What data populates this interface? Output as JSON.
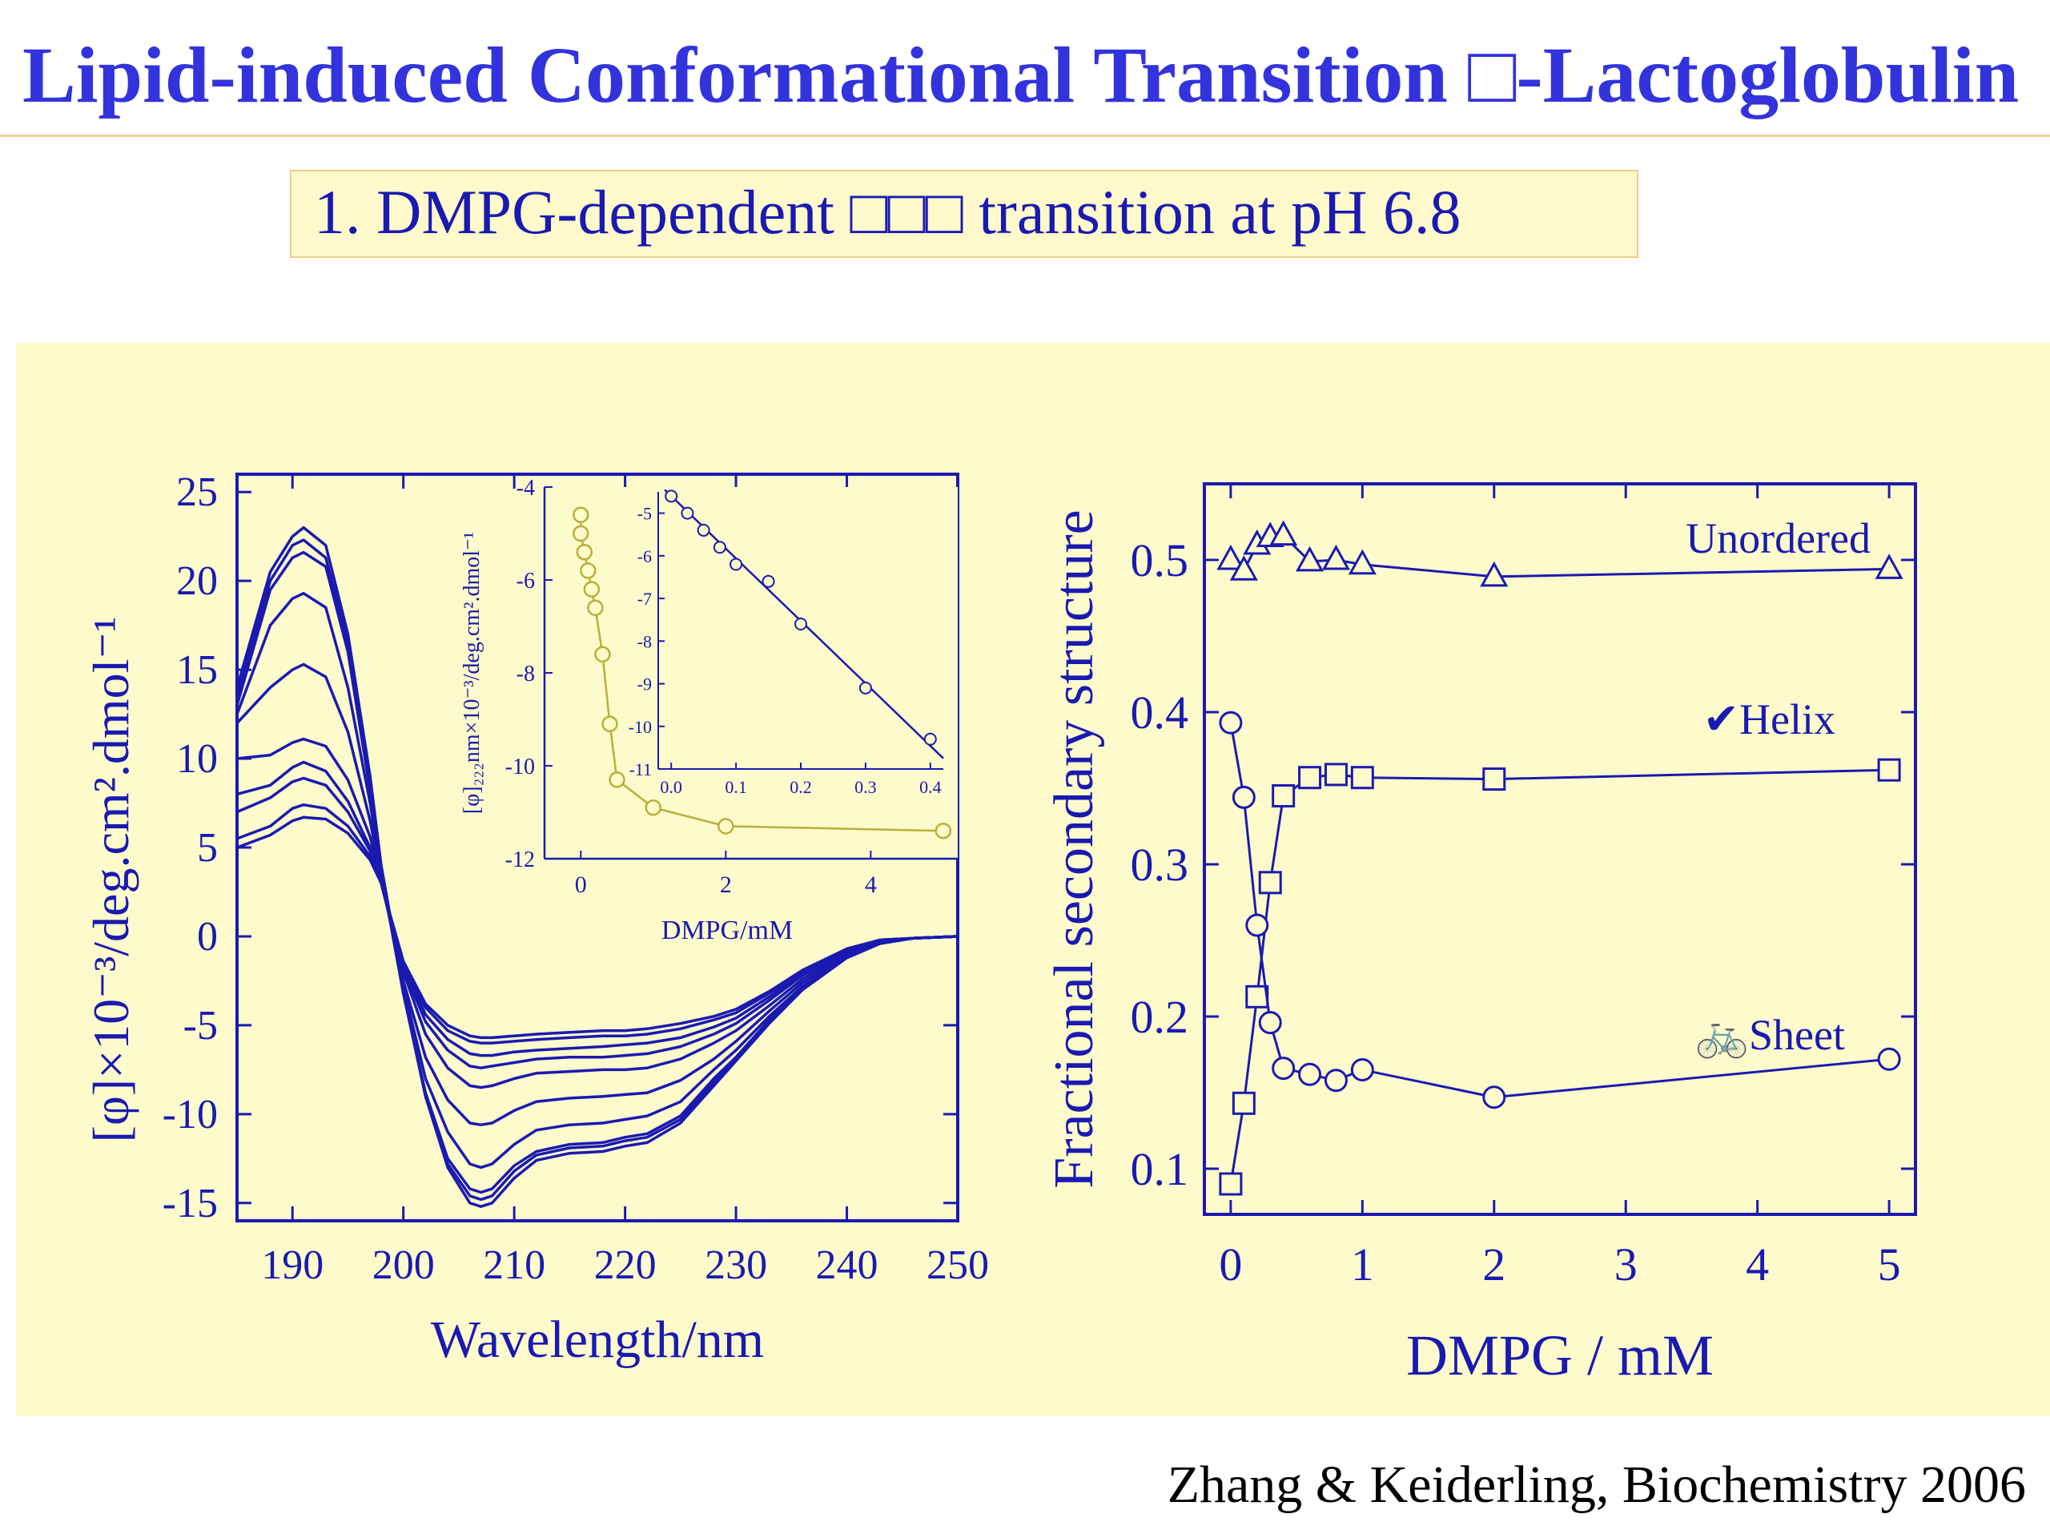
{
  "slide": {
    "title": "Lipid-induced Conformational Transition □-Lactoglobulin",
    "subtitle": "1. DMPG-dependent □□□ transition at pH 6.8",
    "citation": "Zhang & Keiderling, Biochemistry 2006"
  },
  "chart_data": [
    {
      "type": "line",
      "panel_label": "A",
      "xlabel": "Wavelength/nm",
      "ylabel": "[φ]×10⁻³/deg.cm².dmol⁻¹",
      "xlim": [
        185,
        250
      ],
      "ylim": [
        -16,
        26
      ],
      "xticks": [
        190,
        200,
        210,
        220,
        230,
        240,
        250
      ],
      "yticks": [
        -15,
        -10,
        -5,
        0,
        5,
        10,
        15,
        20,
        25
      ],
      "x": [
        185,
        188,
        190,
        191,
        193,
        195,
        197,
        198,
        200,
        202,
        204,
        206,
        207,
        208,
        210,
        212,
        215,
        218,
        220,
        222,
        225,
        228,
        230,
        233,
        236,
        240,
        243,
        246,
        250
      ],
      "series": [
        {
          "values": [
            14.0,
            20.5,
            22.5,
            23.0,
            22.0,
            17.0,
            9.0,
            4.0,
            -3.0,
            -9.0,
            -13.0,
            -15.0,
            -15.2,
            -15.0,
            -13.6,
            -12.6,
            -12.2,
            -12.1,
            -11.8,
            -11.6,
            -10.5,
            -8.4,
            -7.0,
            -4.9,
            -3.0,
            -1.2,
            -0.4,
            -0.1,
            0.0
          ]
        },
        {
          "values": [
            13.5,
            20.0,
            22.0,
            22.3,
            21.3,
            16.5,
            8.5,
            3.8,
            -3.2,
            -9.0,
            -12.8,
            -14.6,
            -14.8,
            -14.6,
            -13.2,
            -12.3,
            -11.9,
            -11.8,
            -11.5,
            -11.3,
            -10.3,
            -8.2,
            -6.9,
            -4.8,
            -3.0,
            -1.2,
            -0.4,
            -0.1,
            0.0
          ]
        },
        {
          "values": [
            13.0,
            19.5,
            21.3,
            21.6,
            20.8,
            16.0,
            8.2,
            3.6,
            -3.2,
            -8.8,
            -12.5,
            -14.2,
            -14.4,
            -14.2,
            -12.9,
            -12.1,
            -11.7,
            -11.6,
            -11.3,
            -11.1,
            -10.1,
            -8.0,
            -6.8,
            -4.7,
            -2.9,
            -1.2,
            -0.4,
            -0.1,
            0.0
          ]
        },
        {
          "values": [
            12.5,
            17.5,
            19.0,
            19.3,
            18.5,
            14.0,
            7.5,
            3.5,
            -2.8,
            -8.0,
            -11.0,
            -12.8,
            -13.0,
            -12.8,
            -11.7,
            -10.9,
            -10.6,
            -10.5,
            -10.3,
            -10.1,
            -9.3,
            -7.5,
            -6.4,
            -4.5,
            -2.8,
            -1.1,
            -0.4,
            -0.1,
            0.0
          ]
        },
        {
          "values": [
            12.0,
            14.0,
            15.0,
            15.3,
            14.6,
            11.5,
            6.5,
            3.2,
            -2.5,
            -6.8,
            -9.2,
            -10.5,
            -10.6,
            -10.5,
            -9.8,
            -9.3,
            -9.1,
            -9.0,
            -8.9,
            -8.8,
            -8.1,
            -6.9,
            -5.9,
            -4.2,
            -2.6,
            -1.0,
            -0.3,
            -0.1,
            0.0
          ]
        },
        {
          "values": [
            10.0,
            10.2,
            10.9,
            11.1,
            10.7,
            8.8,
            5.6,
            3.0,
            -2.0,
            -5.5,
            -7.4,
            -8.4,
            -8.5,
            -8.4,
            -8.0,
            -7.7,
            -7.6,
            -7.5,
            -7.5,
            -7.4,
            -6.9,
            -6.0,
            -5.3,
            -3.9,
            -2.4,
            -0.9,
            -0.3,
            -0.1,
            0.0
          ]
        },
        {
          "values": [
            8.0,
            8.5,
            9.5,
            9.8,
            9.3,
            7.6,
            5.0,
            3.0,
            -1.8,
            -4.8,
            -6.4,
            -7.3,
            -7.4,
            -7.3,
            -7.1,
            -6.9,
            -6.8,
            -6.8,
            -6.7,
            -6.6,
            -6.2,
            -5.5,
            -4.9,
            -3.6,
            -2.2,
            -0.8,
            -0.3,
            -0.1,
            0.0
          ]
        },
        {
          "values": [
            7.0,
            7.8,
            8.7,
            8.9,
            8.5,
            7.0,
            4.8,
            3.0,
            -1.6,
            -4.4,
            -5.8,
            -6.6,
            -6.7,
            -6.7,
            -6.5,
            -6.4,
            -6.3,
            -6.2,
            -6.1,
            -6.0,
            -5.7,
            -5.1,
            -4.6,
            -3.4,
            -2.1,
            -0.8,
            -0.3,
            -0.1,
            0.0
          ]
        },
        {
          "values": [
            5.5,
            6.2,
            7.2,
            7.4,
            7.2,
            6.2,
            4.5,
            3.0,
            -1.5,
            -4.0,
            -5.3,
            -5.9,
            -6.0,
            -6.0,
            -5.9,
            -5.8,
            -5.7,
            -5.6,
            -5.6,
            -5.5,
            -5.2,
            -4.7,
            -4.3,
            -3.2,
            -2.0,
            -0.7,
            -0.2,
            -0.1,
            0.0
          ]
        },
        {
          "values": [
            5.0,
            5.7,
            6.5,
            6.7,
            6.6,
            5.8,
            4.3,
            3.0,
            -1.4,
            -3.8,
            -5.0,
            -5.6,
            -5.7,
            -5.7,
            -5.6,
            -5.5,
            -5.4,
            -5.3,
            -5.3,
            -5.2,
            -4.9,
            -4.5,
            -4.1,
            -3.1,
            -1.9,
            -0.7,
            -0.2,
            -0.1,
            0.0
          ]
        }
      ]
    },
    {
      "type": "scatter",
      "inset_of": "A",
      "xlabel": "DMPG/mM",
      "ylabel": "[φ]₂₂₂nm×10⁻³/deg.cm².dmol⁻¹",
      "xlim": [
        -0.5,
        5.2
      ],
      "ylim": [
        -12,
        -4
      ],
      "xticks": [
        0,
        2,
        4
      ],
      "yticks": [
        -12,
        -10,
        -8,
        -6,
        -4
      ],
      "ytick_labels": [
        "-12",
        "-10",
        "-8",
        "-6",
        "-4"
      ],
      "x": [
        0,
        0,
        0.05,
        0.1,
        0.15,
        0.2,
        0.3,
        0.4,
        0.5,
        1.0,
        2.0,
        5.0
      ],
      "values": [
        -4.6,
        -5.0,
        -5.4,
        -5.8,
        -6.2,
        -6.6,
        -7.6,
        -9.1,
        -10.3,
        -10.9,
        -11.3,
        -11.4
      ]
    },
    {
      "type": "scatter",
      "inset_of": "A",
      "fit": "linear",
      "xlim": [
        -0.02,
        0.42
      ],
      "ylim": [
        -11,
        -4.5
      ],
      "xticks": [
        0.0,
        0.1,
        0.2,
        0.3,
        0.4
      ],
      "xtick_labels": [
        "0.0",
        "0.1",
        "0.2",
        "0.3",
        "0.4"
      ],
      "yticks": [
        -11,
        -10,
        -9,
        -8,
        -7,
        -6,
        -5
      ],
      "x": [
        0.0,
        0.025,
        0.05,
        0.075,
        0.1,
        0.15,
        0.2,
        0.3,
        0.4
      ],
      "values": [
        -4.6,
        -5.0,
        -5.4,
        -5.8,
        -6.2,
        -6.6,
        -7.6,
        -9.1,
        -10.3
      ]
    },
    {
      "type": "line",
      "xlabel": "DMPG / mM",
      "ylabel": "Fractional secondary structure",
      "xlim": [
        -0.2,
        5.2
      ],
      "ylim": [
        0.07,
        0.55
      ],
      "xticks": [
        0,
        1,
        2,
        3,
        4,
        5
      ],
      "yticks": [
        0.1,
        0.2,
        0.3,
        0.4,
        0.5
      ],
      "x": [
        0,
        0.1,
        0.2,
        0.3,
        0.4,
        0.6,
        0.8,
        1.0,
        2.0,
        5.0
      ],
      "series": [
        {
          "name": "Unordered",
          "marker": "triangle",
          "values": [
            0.5,
            0.493,
            0.51,
            0.515,
            0.516,
            0.499,
            0.5,
            0.497,
            0.489,
            0.494
          ]
        },
        {
          "name": "✔Helix",
          "marker": "square",
          "values": [
            0.09,
            0.143,
            0.213,
            0.288,
            0.345,
            0.357,
            0.359,
            0.357,
            0.356,
            0.362
          ]
        },
        {
          "name": "🚲Sheet",
          "marker": "circle",
          "values": [
            0.393,
            0.344,
            0.26,
            0.196,
            0.166,
            0.162,
            0.158,
            0.165,
            0.147,
            0.172
          ]
        }
      ]
    }
  ]
}
